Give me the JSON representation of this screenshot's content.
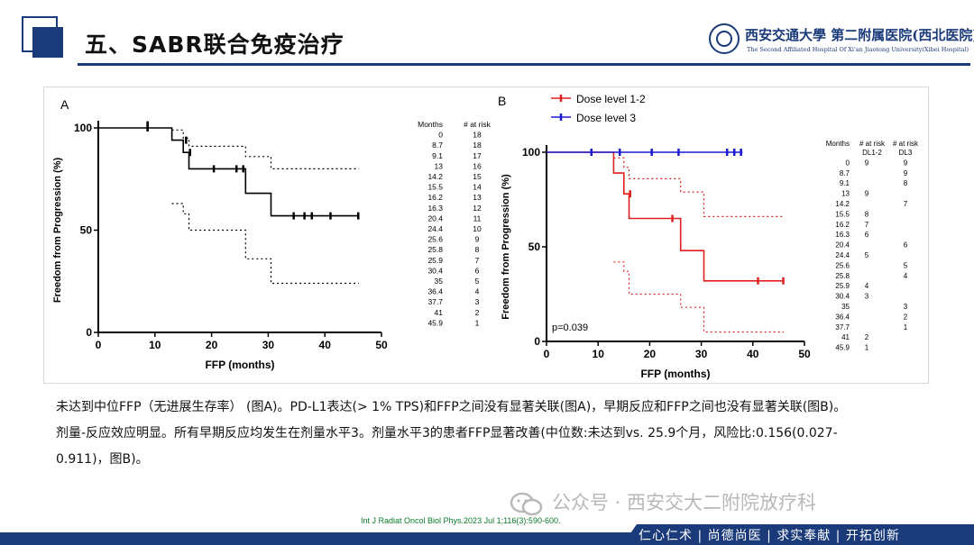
{
  "slide": {
    "title": "五、SABR联合免疫治疗",
    "hospital_cn": "西安交通大學 第二附属医院(西北医院)",
    "hospital_en": "The Second Affiliated Hospital Of Xi'an Jiaotong University(Xibei Hospital)",
    "motto": "仁心仁术 | 尚德尚医 | 求实奉献 | 开拓创新",
    "watermark": "公众号 · 西安交大二附院放疗科",
    "citation": "Int J Radiat Oncol Biol Phys.2023 Jul 1;116(3):590-600.",
    "caption": [
      "未达到中位FFP（无进展生存率） (图A)。PD-L1表达(> 1% TPS)和FFP之间没有显著关联(图A)，早期反应和FFP之间也没有显著关联(图B)。",
      "剂量-反应效应明显。所有早期反应均发生在剂量水平3。剂量水平3的患者FFP显著改善(中位数:未达到vs. 25.9个月，风险比:0.156(0.027-",
      "0.911)，图B)。"
    ],
    "colors": {
      "brand": "#1a3a7a",
      "citation": "#0b7a2a",
      "dl12": "#e02020",
      "dl3": "#1a1ad0"
    }
  },
  "chart_data": [
    {
      "panel_label": "A",
      "type": "line",
      "xlabel": "FFP (months)",
      "ylabel": "Freedom from Progression (%)",
      "x_ticks": [
        "0",
        "10",
        "20",
        "30",
        "40",
        "50"
      ],
      "y_ticks": [
        "0",
        "50",
        "100"
      ],
      "xlim": [
        0,
        50
      ],
      "ylim": [
        0,
        100
      ],
      "series": [
        {
          "step_x": [
            0,
            13,
            13,
            15,
            15,
            16,
            16,
            26,
            26,
            30.5,
            30.5,
            46
          ],
          "step_y": [
            100,
            100,
            94,
            94,
            88,
            88,
            80,
            80,
            68,
            68,
            57,
            57
          ],
          "censor_x": [
            8.7,
            8.7,
            15.5,
            16.2,
            20.4,
            24.4,
            25.6,
            34.5,
            36.4,
            37.7,
            41,
            45.9
          ],
          "censor_y": [
            100,
            101.5,
            94,
            88,
            80,
            80,
            80,
            57,
            57,
            57,
            57,
            57
          ]
        },
        {
          "step_x": [
            13,
            15,
            15,
            16,
            16,
            26,
            26,
            30.5,
            30.5,
            46
          ],
          "step_y": [
            99,
            99,
            95,
            95,
            91,
            91,
            86,
            86,
            80,
            80
          ]
        },
        {
          "step_x": [
            13,
            15,
            15,
            16,
            16,
            26,
            26,
            30.5,
            30.5,
            46
          ],
          "step_y": [
            63,
            63,
            58,
            58,
            50,
            50,
            36,
            36,
            24,
            24
          ]
        }
      ],
      "risk_table": {
        "headers": [
          "Months",
          "# at risk"
        ],
        "rows": [
          [
            "0",
            "18"
          ],
          [
            "8.7",
            "18"
          ],
          [
            "9.1",
            "17"
          ],
          [
            "13",
            "16"
          ],
          [
            "14.2",
            "15"
          ],
          [
            "15.5",
            "14"
          ],
          [
            "16.2",
            "13"
          ],
          [
            "16.3",
            "12"
          ],
          [
            "20.4",
            "11"
          ],
          [
            "24.4",
            "10"
          ],
          [
            "25.6",
            "9"
          ],
          [
            "25.8",
            "8"
          ],
          [
            "25.9",
            "7"
          ],
          [
            "30.4",
            "6"
          ],
          [
            "35",
            "5"
          ],
          [
            "36.4",
            "4"
          ],
          [
            "37.7",
            "3"
          ],
          [
            "41",
            "2"
          ],
          [
            "45.9",
            "1"
          ]
        ]
      }
    },
    {
      "panel_label": "B",
      "type": "line",
      "xlabel": "FFP (months)",
      "ylabel": "Freedom from Progression (%)",
      "x_ticks": [
        "0",
        "10",
        "20",
        "30",
        "40",
        "50"
      ],
      "y_ticks": [
        "0",
        "50",
        "100"
      ],
      "xlim": [
        0,
        50
      ],
      "ylim": [
        0,
        100
      ],
      "annotation": "p=0.039",
      "legend_position": "top-left",
      "series": [
        {
          "name": "Dose level 1-2",
          "step_x": [
            0,
            13,
            13,
            15,
            15,
            16,
            16,
            26,
            26,
            30.5,
            30.5,
            46
          ],
          "step_y": [
            100,
            100,
            89,
            89,
            78,
            78,
            65,
            65,
            48,
            48,
            32,
            32
          ],
          "censor_x": [
            16.2,
            24.4,
            41,
            45.9
          ],
          "censor_y": [
            78,
            65,
            32,
            32
          ]
        },
        {
          "name": "Dose level 3",
          "step_x": [
            0,
            38
          ],
          "step_y": [
            100,
            100
          ],
          "censor_x": [
            8.7,
            14.2,
            20.4,
            25.6,
            35,
            36.4,
            37.7
          ],
          "censor_y": [
            100,
            100,
            100,
            100,
            100,
            100,
            100
          ]
        },
        {
          "step_x": [
            13,
            15,
            15,
            16,
            16,
            26,
            26,
            30.5,
            30.5,
            46
          ],
          "step_y": [
            97,
            97,
            92,
            92,
            86,
            86,
            79,
            79,
            66,
            66
          ]
        },
        {
          "step_x": [
            13,
            15,
            15,
            16,
            16,
            26,
            26,
            30.5,
            30.5,
            46
          ],
          "step_y": [
            42,
            42,
            37,
            37,
            25,
            25,
            18,
            18,
            5,
            5
          ]
        }
      ],
      "risk_table": {
        "headers": [
          "Months",
          "# at risk",
          "# at risk"
        ],
        "subheaders": [
          "",
          "DL1-2",
          "DL3"
        ],
        "rows": [
          [
            "0",
            "9",
            "9"
          ],
          [
            "8.7",
            "",
            "9"
          ],
          [
            "9.1",
            "",
            "8"
          ],
          [
            "13",
            "9",
            ""
          ],
          [
            "14.2",
            "",
            "7"
          ],
          [
            "15.5",
            "8",
            ""
          ],
          [
            "16.2",
            "7",
            ""
          ],
          [
            "16.3",
            "6",
            ""
          ],
          [
            "20.4",
            "",
            "6"
          ],
          [
            "24.4",
            "5",
            ""
          ],
          [
            "25.6",
            "",
            "5"
          ],
          [
            "25.8",
            "",
            "4"
          ],
          [
            "25.9",
            "4",
            ""
          ],
          [
            "30.4",
            "3",
            ""
          ],
          [
            "35",
            "",
            "3"
          ],
          [
            "36.4",
            "",
            "2"
          ],
          [
            "37.7",
            "",
            "1"
          ],
          [
            "41",
            "2",
            ""
          ],
          [
            "45.9",
            "1",
            ""
          ]
        ]
      }
    }
  ]
}
